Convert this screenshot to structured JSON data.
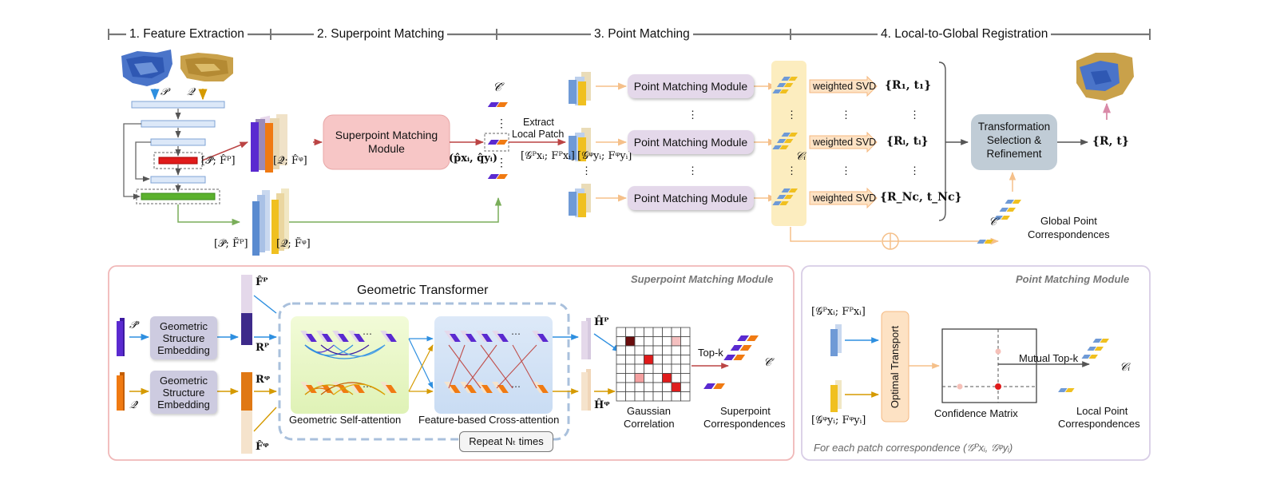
{
  "stages": [
    "1. Feature Extraction",
    "2. Superpoint Matching",
    "3. Point Matching",
    "4. Local-to-Global Registration"
  ],
  "top": {
    "input_p": "𝒫",
    "input_q": "𝒬",
    "coarse_p_feat": "[𝒫̂; F̂ᴾ]",
    "coarse_q_feat": "[𝒬̂; F̂ᵠ]",
    "fine_p_feat": "[𝒫̃; F̃ᴾ]",
    "fine_q_feat": "[𝒬̃; F̃ᵠ]",
    "superpoint_module": "Superpoint Matching Module",
    "c_hat": "𝒞̂",
    "pair": "(p̂xᵢ, q̂yᵢ)",
    "extract_line1": "Extract",
    "extract_line2": "Local Patch",
    "patch_p": "[𝒢ᴾxᵢ; Fᴾxᵢ]",
    "patch_q": "[𝒢ᵠyᵢ; Fᵠyᵢ]",
    "point_matching_module": "Point Matching Module",
    "ci": "𝒞ᵢ",
    "weighted_svd": "weighted SVD",
    "rt_1": "{R₁, t₁}",
    "rt_i": "{Rᵢ, tᵢ}",
    "rt_n": "{R_Nc, t_Nc}",
    "transform_line1": "Transformation",
    "transform_line2": "Selection &",
    "transform_line3": "Refinement",
    "rt_final": "{R, t}",
    "c_global": "𝒞",
    "global_line1": "Global Point",
    "global_line2": "Correspondences",
    "dots": "⋮",
    "dots_h": "⋯"
  },
  "smm": {
    "panel_title": "Superpoint Matching Module",
    "p_hat": "𝒫̂",
    "q_hat": "𝒬̂",
    "gse_line1": "Geometric",
    "gse_line2": "Structure",
    "gse_line3": "Embedding",
    "f_p": "F̂ᴾ",
    "f_q": "F̂ᵠ",
    "r_p": "Rᴾ",
    "r_q": "Rᵠ",
    "geo_transformer": "Geometric Transformer",
    "self_attention": "Geometric Self-attention",
    "cross_attention": "Feature-based Cross-attention",
    "repeat": "Repeat Nₜ times",
    "h_p": "Ĥᴾ",
    "h_q": "Ĥᵠ",
    "gauss_line1": "Gaussian",
    "gauss_line2": "Correlation",
    "topk": "Top-k",
    "c_hat": "𝒞̂",
    "sc_line1": "Superpoint",
    "sc_line2": "Correspondences",
    "dots": "⋯"
  },
  "pmm": {
    "panel_title": "Point Matching Module",
    "patch_p": "[𝒢ᴾxᵢ; Fᴾxᵢ]",
    "patch_q": "[𝒢ᵠyᵢ; Fᵠyᵢ]",
    "ot": "Optimal Transport",
    "conf": "Confidence Matrix",
    "mutual": "Mutual Top-k",
    "ci": "𝒞ᵢ",
    "lpc_line1": "Local Point",
    "lpc_line2": "Correspondences",
    "footer": "For each patch correspondence (𝒢ᴾxᵢ, 𝒢ᵠyᵢ)"
  }
}
